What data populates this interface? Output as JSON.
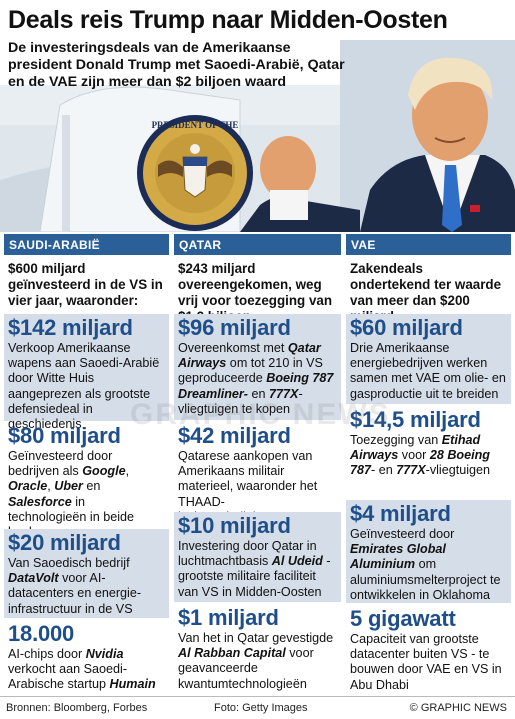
{
  "title": "Deals reis Trump naar Midden-Oosten",
  "subtitle": "De investeringsdeals van de Amerikaanse president Donald Trump met Saoedi-Arabië, Qatar en de VAE zijn meer dan $2 biljoen waard",
  "columns": [
    {
      "header": "SAUDI-ARABIË",
      "intro": "$600 miljard geïnvesteerd in de VS in vier jaar, waaronder:",
      "items": [
        {
          "amount": "$142 miljard",
          "text": [
            "Verkoop Amerikaanse wapens aan Saoedi-Arabië door Witte Huis aangeprezen als grootste defensiedeal in geschiedenis"
          ]
        },
        {
          "amount": "$80 miljard",
          "text": [
            "Geïnvesteerd door bedrijven als ",
            "Google",
            ", ",
            "Oracle",
            ", ",
            "Uber",
            " en ",
            "Salesforce",
            " in technologieën in beide landen"
          ]
        },
        {
          "amount": "$20 miljard",
          "text": [
            "Van Saoedisch bedrijf ",
            "DataVolt",
            " voor AI-datacenters en energie-infrastructuur in de VS"
          ]
        },
        {
          "amount": "18.000",
          "text": [
            "AI-chips door ",
            "Nvidia",
            " verkocht aan Saoedi-Arabische startup ",
            "Humain"
          ]
        }
      ]
    },
    {
      "header": "QATAR",
      "intro": "$243 miljard overeengekomen, weg vrij voor toezegging van $1,2 biljoen",
      "items": [
        {
          "amount": "$96 miljard",
          "text": [
            "Overeenkomst met ",
            "Qatar Airways",
            " om tot 210 in VS geproduceerde ",
            "Boeing 787 Dreamliner-",
            " en ",
            "777X",
            "-vliegtuigen te kopen"
          ]
        },
        {
          "amount": "$42 miljard",
          "text": [
            "Qatarese aankopen van Amerikaans militair materieel, waaronder het THAAD-luchtverdedigingssysteem"
          ]
        },
        {
          "amount": "$10 miljard",
          "text": [
            "Investering door Qatar in luchtmachtbasis ",
            "Al Udeid",
            " - grootste militaire faciliteit van VS in Midden-Oosten"
          ]
        },
        {
          "amount": "$1 miljard",
          "text": [
            "Van het in Qatar gevestigde ",
            "Al Rabban Capital",
            " voor geavanceerde kwantumtechnologieën"
          ]
        }
      ]
    },
    {
      "header": "VAE",
      "intro": "Zakendeals ondertekend ter waarde van meer dan $200 miljard",
      "items": [
        {
          "amount": "$60 miljard",
          "text": [
            "Drie Amerikaanse energiebedrijven werken samen met VAE om olie- en gasproductie uit te breiden"
          ]
        },
        {
          "amount": "$14,5 miljard",
          "text": [
            "Toezegging van ",
            "Etihad Airways",
            " voor ",
            "28 Boeing 787",
            "- en ",
            "777X",
            "-vliegtuigen"
          ]
        },
        {
          "amount": "$4 miljard",
          "text": [
            "Geïnvesteerd door ",
            "Emirates Global Aluminium",
            " om aluminiumsmelterproject te ontwikkelen in Oklahoma"
          ]
        },
        {
          "amount": "5 gigawatt",
          "text": [
            "Capaciteit van grootste datacenter buiten VS - te bouwen door VAE en VS in Abu Dhabi"
          ]
        }
      ]
    }
  ],
  "footer": {
    "sources": "Bronnen: Bloomberg, Forbes",
    "photo": "Foto: Getty Images",
    "copyright": "© GRAPHIC NEWS"
  },
  "watermark": "GRAPHIC NEWS",
  "seal_text": "PRESIDENT OF THE",
  "colors": {
    "header_bg": "#2b5f98",
    "amount": "#1f4f8a",
    "shade": "#d5dde8"
  }
}
